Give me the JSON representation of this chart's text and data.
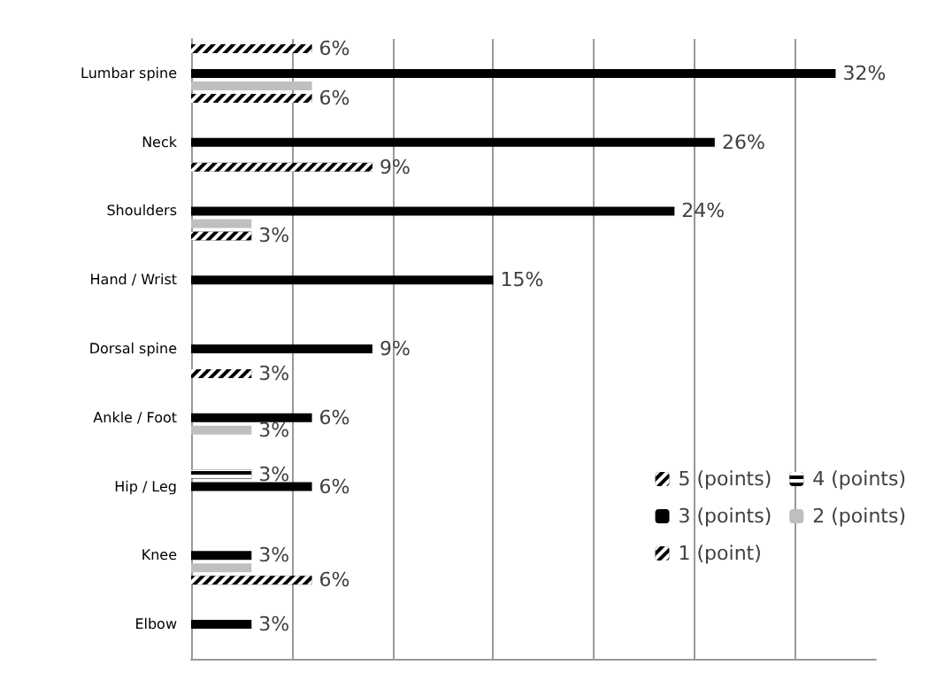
{
  "chart_data": {
    "type": "bar",
    "orientation": "horizontal",
    "categories": [
      "Lumbar spine",
      "Neck",
      "Shoulders",
      "Hand / Wrist",
      "Dorsal spine",
      "Ankle / Foot",
      "Hip / Leg",
      "Knee",
      "Elbow"
    ],
    "series": [
      {
        "name": "5 (points)",
        "color": "#000000",
        "values": [
          6,
          null,
          null,
          null,
          null,
          null,
          null,
          null,
          null
        ],
        "value_labels": [
          "6%",
          null,
          null,
          null,
          null,
          null,
          null,
          null,
          null
        ]
      },
      {
        "name": "4 (points)",
        "color": "#000000",
        "values": [
          null,
          null,
          null,
          null,
          null,
          null,
          3,
          null,
          null
        ],
        "value_labels": [
          null,
          null,
          null,
          null,
          null,
          null,
          "3%",
          null,
          null
        ]
      },
      {
        "name": "3 (points)",
        "color": "#000000",
        "values": [
          32,
          26,
          24,
          15,
          9,
          6,
          6,
          3,
          3
        ],
        "value_labels": [
          "32%",
          "26%",
          "24%",
          "15%",
          "9%",
          "6%",
          "6%",
          "3%",
          "3%"
        ]
      },
      {
        "name": "2 (points)",
        "color": "#bfbfbf",
        "values": [
          6,
          null,
          3,
          null,
          null,
          3,
          null,
          3,
          null
        ],
        "value_labels": [
          null,
          null,
          null,
          null,
          null,
          "3%",
          null,
          null,
          null
        ]
      },
      {
        "name": "1 (point)",
        "color": "#000000",
        "values": [
          6,
          9,
          3,
          null,
          3,
          null,
          null,
          6,
          null
        ],
        "value_labels": [
          "6%",
          "9%",
          "3%",
          null,
          "3%",
          null,
          null,
          "6%",
          null
        ]
      }
    ],
    "xlim": [
      0,
      34
    ],
    "xticks": [
      {
        "value": 0,
        "label": null
      },
      {
        "value": 5,
        "label": null
      },
      {
        "value": 10,
        "label": null
      },
      {
        "value": 15,
        "label": null
      },
      {
        "value": 20,
        "label": null
      },
      {
        "value": 25,
        "label": null
      },
      {
        "value": 30,
        "label": null
      }
    ],
    "grid": "x",
    "legend": "bottom right"
  }
}
